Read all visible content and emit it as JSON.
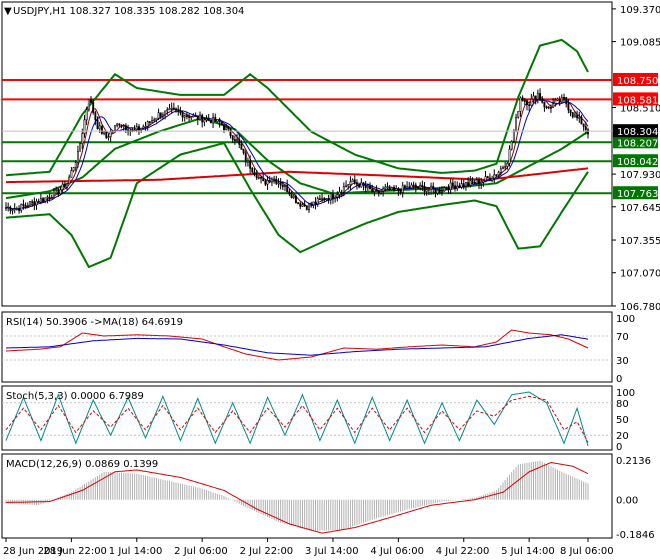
{
  "chart_data": [
    {
      "type": "candlestick",
      "panel": "main",
      "header": "USDJPY,H1  108.327 108.335 108.282 108.304",
      "ylim": [
        106.78,
        109.43
      ],
      "price_ticks": [
        "109.370",
        "109.085",
        "108.510",
        "107.930",
        "107.645",
        "107.355",
        "107.070",
        "106.780"
      ],
      "levels": [
        {
          "label": "108.750",
          "value": 108.75,
          "color": "#ff0000",
          "text_color": "#ffffff"
        },
        {
          "label": "108.581",
          "value": 108.581,
          "color": "#ff0000",
          "text_color": "#ffffff"
        },
        {
          "label": "108.207",
          "value": 108.207,
          "color": "#007700",
          "text_color": "#ffffff"
        },
        {
          "label": "108.042",
          "value": 108.042,
          "color": "#007700",
          "text_color": "#ffffff"
        },
        {
          "label": "107.763",
          "value": 107.763,
          "color": "#007700",
          "text_color": "#ffffff"
        }
      ],
      "current_price": {
        "label": "108.304",
        "value": 108.304
      },
      "close_anchors": [
        [
          0,
          107.64
        ],
        [
          5,
          107.63
        ],
        [
          12,
          107.68
        ],
        [
          18,
          107.72
        ],
        [
          24,
          107.78
        ],
        [
          28,
          107.85
        ],
        [
          33,
          108.1
        ],
        [
          38,
          108.6
        ],
        [
          42,
          108.35
        ],
        [
          46,
          108.25
        ],
        [
          52,
          108.38
        ],
        [
          58,
          108.3
        ],
        [
          64,
          108.35
        ],
        [
          70,
          108.45
        ],
        [
          76,
          108.48
        ],
        [
          82,
          108.45
        ],
        [
          88,
          108.42
        ],
        [
          94,
          108.4
        ],
        [
          98,
          108.38
        ],
        [
          102,
          108.3
        ],
        [
          106,
          108.22
        ],
        [
          110,
          108.05
        ],
        [
          114,
          107.95
        ],
        [
          118,
          107.85
        ],
        [
          122,
          107.9
        ],
        [
          126,
          107.85
        ],
        [
          130,
          107.78
        ],
        [
          134,
          107.68
        ],
        [
          138,
          107.65
        ],
        [
          142,
          107.68
        ],
        [
          146,
          107.72
        ],
        [
          150,
          107.74
        ],
        [
          154,
          107.8
        ],
        [
          158,
          107.86
        ],
        [
          162,
          107.84
        ],
        [
          166,
          107.8
        ],
        [
          170,
          107.76
        ],
        [
          174,
          107.8
        ],
        [
          178,
          107.78
        ],
        [
          182,
          107.8
        ],
        [
          186,
          107.82
        ],
        [
          190,
          107.81
        ],
        [
          194,
          107.8
        ],
        [
          198,
          107.78
        ],
        [
          202,
          107.82
        ],
        [
          206,
          107.83
        ],
        [
          210,
          107.84
        ],
        [
          214,
          107.85
        ],
        [
          218,
          107.87
        ],
        [
          222,
          107.9
        ],
        [
          226,
          107.95
        ],
        [
          230,
          108.05
        ],
        [
          233,
          108.3
        ],
        [
          236,
          108.6
        ],
        [
          240,
          108.55
        ],
        [
          244,
          108.63
        ],
        [
          248,
          108.5
        ],
        [
          252,
          108.55
        ],
        [
          256,
          108.58
        ],
        [
          260,
          108.45
        ],
        [
          264,
          108.38
        ],
        [
          267,
          108.3
        ]
      ],
      "sma_fast_color": "#880000",
      "sma_slow_color": "#0000cc",
      "ma_long_color": "#dd0000",
      "ma_long": [
        [
          0,
          107.86
        ],
        [
          70,
          107.88
        ],
        [
          130,
          107.95
        ],
        [
          170,
          107.92
        ],
        [
          220,
          107.88
        ],
        [
          267,
          107.98
        ]
      ],
      "bollinger_color": "#007700",
      "bollinger_upper": [
        [
          0,
          107.92
        ],
        [
          20,
          107.95
        ],
        [
          35,
          108.45
        ],
        [
          50,
          108.8
        ],
        [
          60,
          108.68
        ],
        [
          80,
          108.62
        ],
        [
          100,
          108.62
        ],
        [
          112,
          108.8
        ],
        [
          120,
          108.68
        ],
        [
          140,
          108.3
        ],
        [
          160,
          108.1
        ],
        [
          180,
          107.98
        ],
        [
          200,
          107.94
        ],
        [
          215,
          107.96
        ],
        [
          225,
          108.02
        ],
        [
          235,
          108.6
        ],
        [
          245,
          109.05
        ],
        [
          255,
          109.1
        ],
        [
          262,
          109.0
        ],
        [
          267,
          108.82
        ]
      ],
      "bollinger_middle": [
        [
          0,
          107.72
        ],
        [
          20,
          107.78
        ],
        [
          35,
          107.9
        ],
        [
          50,
          108.15
        ],
        [
          70,
          108.3
        ],
        [
          90,
          108.42
        ],
        [
          105,
          108.32
        ],
        [
          120,
          108.05
        ],
        [
          135,
          107.85
        ],
        [
          150,
          107.76
        ],
        [
          170,
          107.78
        ],
        [
          190,
          107.8
        ],
        [
          210,
          107.82
        ],
        [
          225,
          107.85
        ],
        [
          240,
          108.0
        ],
        [
          255,
          108.15
        ],
        [
          267,
          108.3
        ]
      ],
      "bollinger_lower": [
        [
          0,
          107.55
        ],
        [
          20,
          107.58
        ],
        [
          30,
          107.4
        ],
        [
          38,
          107.12
        ],
        [
          48,
          107.2
        ],
        [
          60,
          107.85
        ],
        [
          80,
          108.1
        ],
        [
          100,
          108.2
        ],
        [
          112,
          107.8
        ],
        [
          125,
          107.4
        ],
        [
          135,
          107.25
        ],
        [
          150,
          107.38
        ],
        [
          165,
          107.5
        ],
        [
          180,
          107.6
        ],
        [
          200,
          107.66
        ],
        [
          215,
          107.7
        ],
        [
          225,
          107.65
        ],
        [
          235,
          107.28
        ],
        [
          245,
          107.3
        ],
        [
          255,
          107.6
        ],
        [
          267,
          107.95
        ]
      ]
    },
    {
      "type": "line",
      "panel": "rsi",
      "header": "RSI(14) 50.3906  ->MA(18) 64.6919",
      "ylim": [
        0,
        100
      ],
      "y_ticks": [
        "100",
        "70",
        "30",
        "0"
      ],
      "rsi_color": "#dd0000",
      "ma_color": "#0000cc",
      "rsi": [
        [
          0,
          45
        ],
        [
          15,
          48
        ],
        [
          25,
          52
        ],
        [
          35,
          75
        ],
        [
          45,
          70
        ],
        [
          60,
          72
        ],
        [
          75,
          70
        ],
        [
          90,
          65
        ],
        [
          100,
          52
        ],
        [
          110,
          40
        ],
        [
          125,
          30
        ],
        [
          140,
          35
        ],
        [
          155,
          50
        ],
        [
          170,
          48
        ],
        [
          185,
          52
        ],
        [
          200,
          55
        ],
        [
          215,
          52
        ],
        [
          225,
          60
        ],
        [
          232,
          80
        ],
        [
          240,
          75
        ],
        [
          250,
          72
        ],
        [
          258,
          65
        ],
        [
          267,
          50
        ]
      ],
      "ma": [
        [
          0,
          50
        ],
        [
          20,
          52
        ],
        [
          40,
          62
        ],
        [
          60,
          66
        ],
        [
          80,
          65
        ],
        [
          100,
          55
        ],
        [
          120,
          42
        ],
        [
          140,
          38
        ],
        [
          160,
          44
        ],
        [
          180,
          48
        ],
        [
          200,
          50
        ],
        [
          220,
          52
        ],
        [
          240,
          66
        ],
        [
          255,
          72
        ],
        [
          267,
          64.7
        ]
      ]
    },
    {
      "type": "line",
      "panel": "stoch",
      "header": "Stoch(5,3,3) 0.0000 6.7989",
      "ylim": [
        0,
        100
      ],
      "y_ticks": [
        "100",
        "80",
        "50",
        "20",
        "0"
      ],
      "main_color": "#008b8b",
      "signal_color": "#dd0000",
      "main": [
        [
          0,
          10
        ],
        [
          8,
          90
        ],
        [
          16,
          10
        ],
        [
          24,
          95
        ],
        [
          32,
          5
        ],
        [
          40,
          85
        ],
        [
          48,
          20
        ],
        [
          56,
          90
        ],
        [
          64,
          15
        ],
        [
          72,
          92
        ],
        [
          80,
          10
        ],
        [
          88,
          88
        ],
        [
          96,
          5
        ],
        [
          104,
          80
        ],
        [
          112,
          5
        ],
        [
          120,
          90
        ],
        [
          128,
          20
        ],
        [
          136,
          95
        ],
        [
          144,
          10
        ],
        [
          152,
          85
        ],
        [
          160,
          5
        ],
        [
          168,
          90
        ],
        [
          176,
          10
        ],
        [
          184,
          85
        ],
        [
          192,
          5
        ],
        [
          200,
          80
        ],
        [
          208,
          10
        ],
        [
          216,
          85
        ],
        [
          224,
          40
        ],
        [
          232,
          95
        ],
        [
          240,
          100
        ],
        [
          248,
          80
        ],
        [
          256,
          5
        ],
        [
          262,
          70
        ],
        [
          267,
          0
        ]
      ],
      "signal": [
        [
          0,
          30
        ],
        [
          8,
          70
        ],
        [
          16,
          30
        ],
        [
          24,
          75
        ],
        [
          32,
          25
        ],
        [
          40,
          65
        ],
        [
          48,
          35
        ],
        [
          56,
          70
        ],
        [
          64,
          30
        ],
        [
          72,
          75
        ],
        [
          80,
          30
        ],
        [
          88,
          70
        ],
        [
          96,
          25
        ],
        [
          104,
          65
        ],
        [
          112,
          25
        ],
        [
          120,
          70
        ],
        [
          128,
          35
        ],
        [
          136,
          75
        ],
        [
          144,
          30
        ],
        [
          152,
          70
        ],
        [
          160,
          25
        ],
        [
          168,
          70
        ],
        [
          176,
          30
        ],
        [
          184,
          70
        ],
        [
          192,
          25
        ],
        [
          200,
          65
        ],
        [
          208,
          30
        ],
        [
          216,
          65
        ],
        [
          224,
          55
        ],
        [
          232,
          85
        ],
        [
          240,
          92
        ],
        [
          248,
          85
        ],
        [
          256,
          30
        ],
        [
          262,
          45
        ],
        [
          267,
          6.8
        ]
      ]
    },
    {
      "type": "bar",
      "panel": "macd",
      "header": "MACD(12,26,9) 0.0869 0.1399",
      "ylim": [
        -0.1846,
        0.2136
      ],
      "y_ticks": [
        "0.2136",
        "0.00",
        "-0.1846"
      ],
      "histogram_color": "#b0b0b0",
      "signal_color": "#dd0000",
      "histogram": [
        [
          0,
          -0.02
        ],
        [
          15,
          -0.03
        ],
        [
          30,
          0.04
        ],
        [
          45,
          0.15
        ],
        [
          60,
          0.14
        ],
        [
          75,
          0.1
        ],
        [
          90,
          0.06
        ],
        [
          100,
          0.02
        ],
        [
          110,
          -0.04
        ],
        [
          125,
          -0.12
        ],
        [
          140,
          -0.17
        ],
        [
          155,
          -0.16
        ],
        [
          170,
          -0.1
        ],
        [
          185,
          -0.05
        ],
        [
          200,
          -0.01
        ],
        [
          215,
          0.01
        ],
        [
          225,
          0.05
        ],
        [
          235,
          0.19
        ],
        [
          245,
          0.21
        ],
        [
          255,
          0.15
        ],
        [
          267,
          0.087
        ]
      ],
      "signal": [
        [
          0,
          -0.015
        ],
        [
          20,
          -0.01
        ],
        [
          35,
          0.05
        ],
        [
          50,
          0.15
        ],
        [
          60,
          0.16
        ],
        [
          80,
          0.12
        ],
        [
          100,
          0.05
        ],
        [
          115,
          -0.05
        ],
        [
          130,
          -0.13
        ],
        [
          145,
          -0.18
        ],
        [
          160,
          -0.15
        ],
        [
          175,
          -0.1
        ],
        [
          195,
          -0.03
        ],
        [
          215,
          0.0
        ],
        [
          228,
          0.04
        ],
        [
          240,
          0.15
        ],
        [
          250,
          0.2
        ],
        [
          260,
          0.18
        ],
        [
          267,
          0.14
        ]
      ]
    }
  ],
  "x_axis": {
    "tick_labels": [
      "28 Jun 2019",
      "28 Jun 22:00",
      "1 Jul 14:00",
      "2 Jul 06:00",
      "2 Jul 22:00",
      "3 Jul 14:00",
      "4 Jul 06:00",
      "4 Jul 22:00",
      "5 Jul 14:00",
      "8 Jul 06:00"
    ],
    "tick_bar_index": [
      0,
      30,
      60,
      90,
      120,
      150,
      180,
      210,
      240,
      267
    ]
  }
}
